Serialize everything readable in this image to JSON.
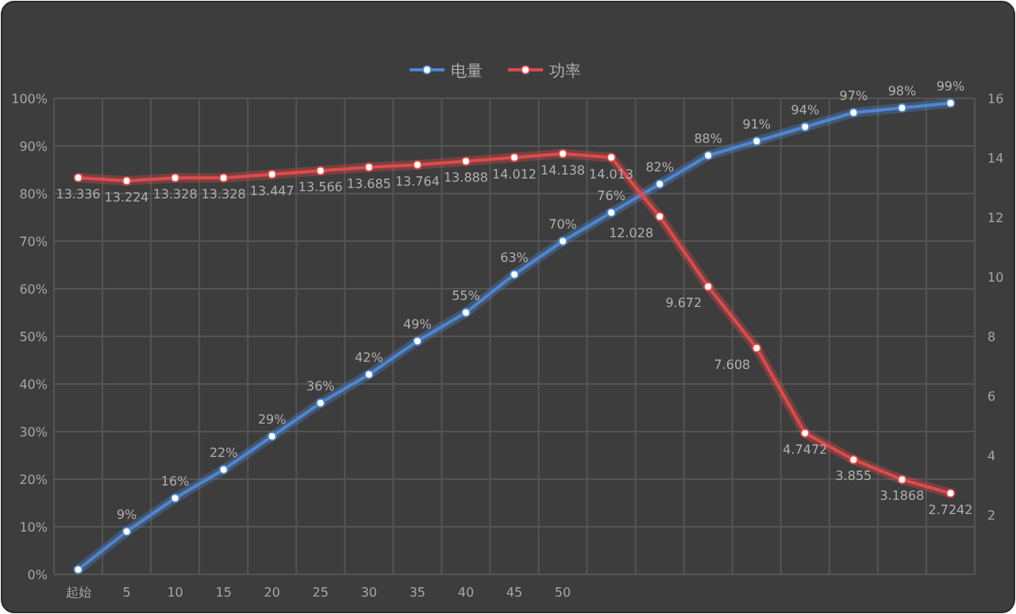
{
  "chart_data": {
    "type": "line",
    "categories": [
      "起始",
      "5",
      "10",
      "15",
      "20",
      "25",
      "30",
      "35",
      "40",
      "45",
      "50",
      null,
      null,
      null,
      null,
      null,
      null,
      null,
      null
    ],
    "series": [
      {
        "name": "电量",
        "color": "#4f86d0",
        "values": [
          1,
          9,
          16,
          22,
          29,
          36,
          42,
          49,
          55,
          63,
          70,
          76,
          82,
          88,
          91,
          94,
          97,
          98,
          99
        ],
        "value_labels": [
          null,
          "9%",
          "16%",
          "22%",
          "29%",
          "36%",
          "42%",
          "49%",
          "55%",
          "63%",
          "70%",
          "76%",
          "82%",
          "88%",
          "91%",
          "94%",
          "97%",
          "98%",
          "99%"
        ]
      },
      {
        "name": "功率",
        "color": "#e04a4a",
        "axis": "y2",
        "values": [
          13.336,
          13.224,
          13.328,
          13.328,
          13.447,
          13.566,
          13.685,
          13.764,
          13.888,
          14.012,
          14.138,
          14.013,
          12.028,
          9.672,
          7.608,
          4.7472,
          3.855,
          3.1868,
          2.7242
        ],
        "value_labels": [
          "13.336",
          "13.224",
          "13.328",
          "13.328",
          "13.447",
          "13.566",
          "13.685",
          "13.764",
          "13.888",
          "14.012",
          "14.138",
          "14.013",
          "12.028",
          "9.672",
          "7.608",
          "4.7472",
          "3.855",
          "3.1868",
          "2.7242"
        ]
      }
    ],
    "ylim": [
      0,
      100
    ],
    "yticks": [
      {
        "value": 0,
        "label": "0%"
      },
      {
        "value": 10,
        "label": "10%"
      },
      {
        "value": 20,
        "label": "20%"
      },
      {
        "value": 30,
        "label": "30%"
      },
      {
        "value": 40,
        "label": "40%"
      },
      {
        "value": 50,
        "label": "50%"
      },
      {
        "value": 60,
        "label": "60%"
      },
      {
        "value": 70,
        "label": "70%"
      },
      {
        "value": 80,
        "label": "80%"
      },
      {
        "value": 90,
        "label": "90%"
      },
      {
        "value": 100,
        "label": "100%"
      }
    ],
    "y2lim": [
      0,
      16
    ],
    "y2ticks": [
      2,
      4,
      6,
      8,
      10,
      12,
      14,
      16
    ],
    "grid": true,
    "legend": "top",
    "marker": "circle",
    "line_style": "solid"
  }
}
